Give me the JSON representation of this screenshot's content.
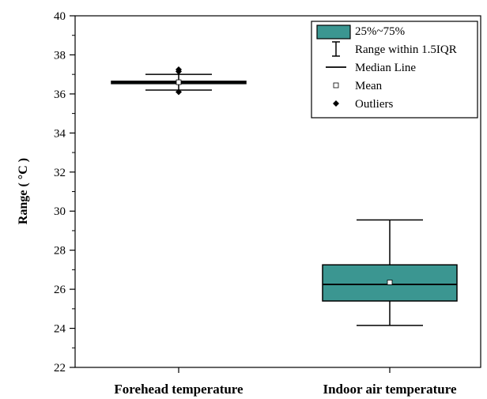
{
  "chart_data": {
    "type": "box",
    "ylabel": "Range ( °C )",
    "ylim": [
      22,
      40
    ],
    "yticks": [
      22,
      24,
      26,
      28,
      30,
      32,
      34,
      36,
      38,
      40
    ],
    "categories": [
      "Forehead temperature",
      "Indoor air temperature"
    ],
    "boxes": [
      {
        "category": "Forehead temperature",
        "whisker_low": 36.2,
        "q1": 36.55,
        "median": 36.6,
        "q3": 36.65,
        "whisker_high": 37.0,
        "mean": 36.6,
        "outliers": [
          36.1,
          37.15,
          37.25
        ]
      },
      {
        "category": "Indoor air temperature",
        "whisker_low": 24.15,
        "q1": 25.4,
        "median": 26.25,
        "q3": 27.25,
        "whisker_high": 29.55,
        "mean": 26.35,
        "outliers": []
      }
    ],
    "legend": {
      "position": "top-right",
      "entries": [
        "25%~75%",
        "Range within 1.5IQR",
        "Median Line",
        "Mean",
        "Outliers"
      ]
    },
    "colors": {
      "box_fill": "#3b9691",
      "stroke": "#000000"
    },
    "grid": false
  }
}
